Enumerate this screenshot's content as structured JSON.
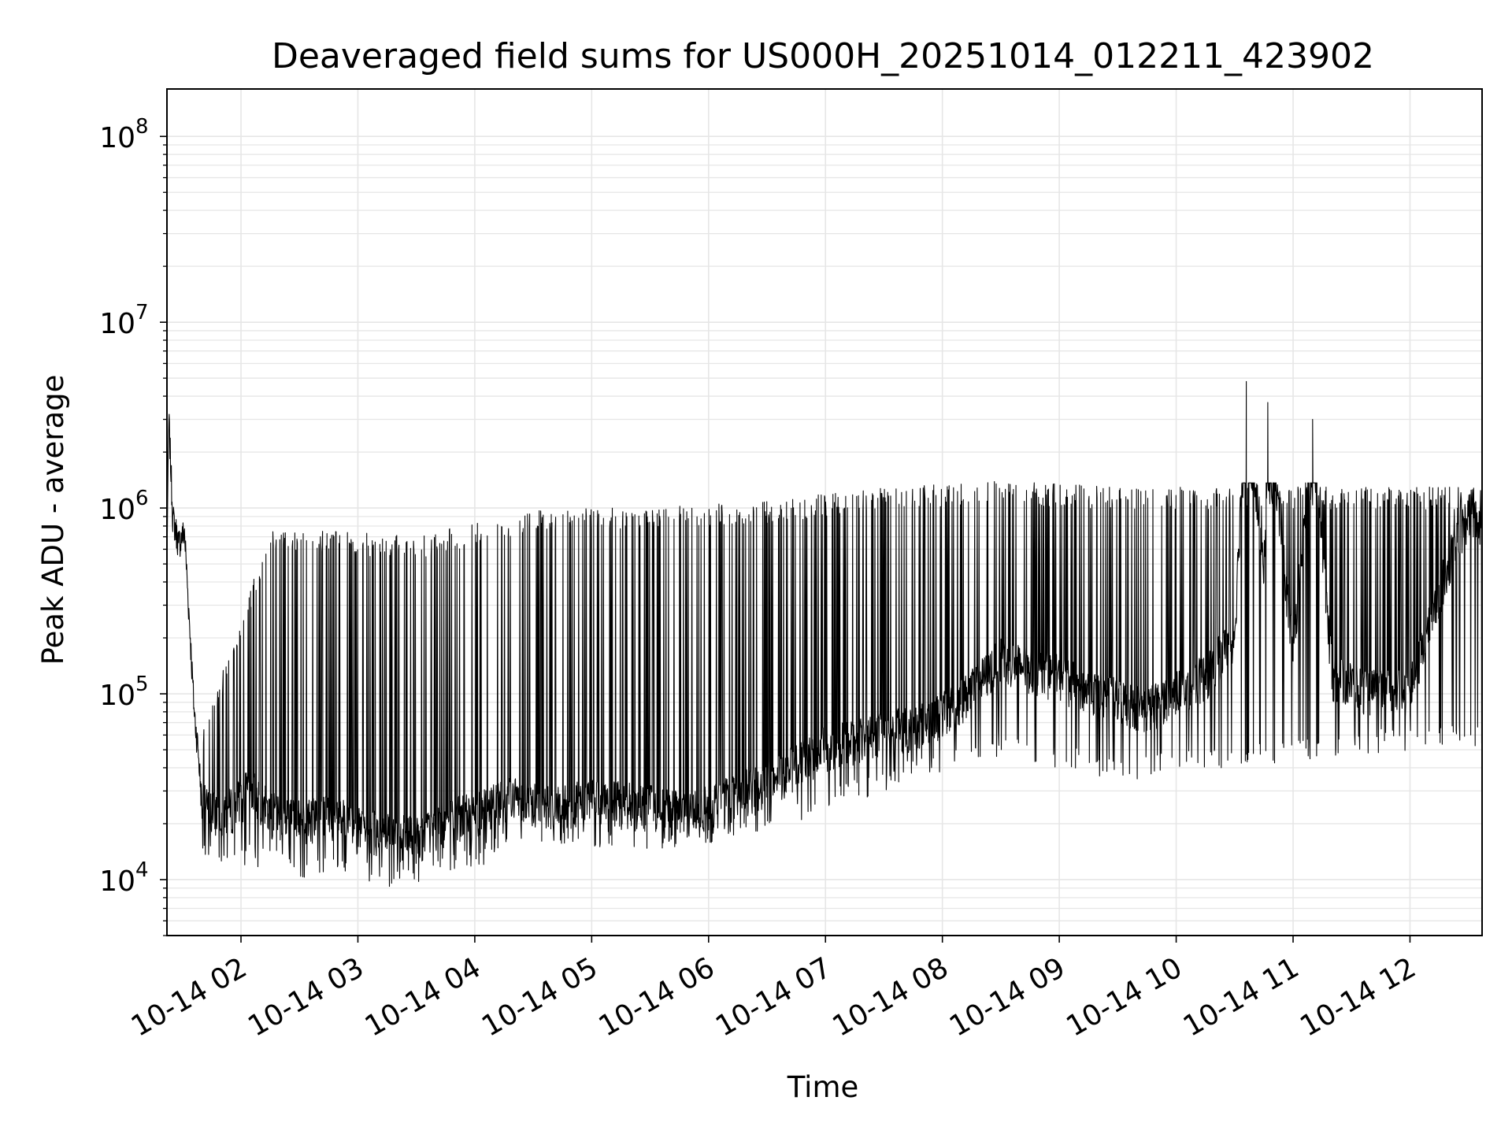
{
  "chart_data": {
    "type": "line",
    "title": "Deaveraged field sums for US000H_20251014_012211_423902",
    "xlabel": "Time",
    "ylabel": "Peak ADU - average",
    "y_scale": "log",
    "ylim": [
      5000,
      180000000
    ],
    "xlim": [
      "2025-10-14 01:22",
      "2025-10-14 12:37"
    ],
    "grid": true,
    "line_color": "#000000",
    "grid_color": "#e6e6e6",
    "x_ticks": [
      {
        "value": "2025-10-14 02:00",
        "label": "10-14 02"
      },
      {
        "value": "2025-10-14 03:00",
        "label": "10-14 03"
      },
      {
        "value": "2025-10-14 04:00",
        "label": "10-14 04"
      },
      {
        "value": "2025-10-14 05:00",
        "label": "10-14 05"
      },
      {
        "value": "2025-10-14 06:00",
        "label": "10-14 06"
      },
      {
        "value": "2025-10-14 07:00",
        "label": "10-14 07"
      },
      {
        "value": "2025-10-14 08:00",
        "label": "10-14 08"
      },
      {
        "value": "2025-10-14 09:00",
        "label": "10-14 09"
      },
      {
        "value": "2025-10-14 10:00",
        "label": "10-14 10"
      },
      {
        "value": "2025-10-14 11:00",
        "label": "10-14 11"
      },
      {
        "value": "2025-10-14 12:00",
        "label": "10-14 12"
      }
    ],
    "y_ticks": [
      {
        "value": 10000,
        "base": "10",
        "exp": "4"
      },
      {
        "value": 100000,
        "base": "10",
        "exp": "5"
      },
      {
        "value": 1000000,
        "base": "10",
        "exp": "6"
      },
      {
        "value": 10000000,
        "base": "10",
        "exp": "7"
      },
      {
        "value": 100000000,
        "base": "10",
        "exp": "8"
      }
    ],
    "series": [
      {
        "points": [
          [
            "2025-10-14 01:22",
            600000
          ],
          [
            "2025-10-14 01:23",
            3000000
          ],
          [
            "2025-10-14 01:25",
            900000
          ],
          [
            "2025-10-14 01:28",
            650000
          ],
          [
            "2025-10-14 01:31",
            750000
          ],
          [
            "2025-10-14 01:34",
            200000
          ],
          [
            "2025-10-14 01:36",
            80000
          ],
          [
            "2025-10-14 01:38",
            50000
          ],
          [
            "2025-10-14 01:40",
            25000
          ],
          [
            "2025-10-14 01:45",
            22000
          ],
          [
            "2025-10-14 01:55",
            23000
          ],
          [
            "2025-10-14 02:05",
            30000
          ],
          [
            "2025-10-14 02:15",
            22000
          ],
          [
            "2025-10-14 02:30",
            20000
          ],
          [
            "2025-10-14 02:45",
            22000
          ],
          [
            "2025-10-14 03:00",
            18000
          ],
          [
            "2025-10-14 03:15",
            17000
          ],
          [
            "2025-10-14 03:30",
            16000
          ],
          [
            "2025-10-14 03:45",
            20000
          ],
          [
            "2025-10-14 04:00",
            22000
          ],
          [
            "2025-10-14 04:15",
            27000
          ],
          [
            "2025-10-14 04:30",
            25000
          ],
          [
            "2025-10-14 04:45",
            24000
          ],
          [
            "2025-10-14 05:00",
            26000
          ],
          [
            "2025-10-14 05:15",
            25000
          ],
          [
            "2025-10-14 05:30",
            24000
          ],
          [
            "2025-10-14 05:45",
            22000
          ],
          [
            "2025-10-14 06:00",
            24000
          ],
          [
            "2025-10-14 06:15",
            28000
          ],
          [
            "2025-10-14 06:30",
            32000
          ],
          [
            "2025-10-14 06:45",
            40000
          ],
          [
            "2025-10-14 07:00",
            50000
          ],
          [
            "2025-10-14 07:15",
            55000
          ],
          [
            "2025-10-14 07:30",
            60000
          ],
          [
            "2025-10-14 07:45",
            65000
          ],
          [
            "2025-10-14 08:00",
            75000
          ],
          [
            "2025-10-14 08:15",
            100000
          ],
          [
            "2025-10-14 08:30",
            150000
          ],
          [
            "2025-10-14 08:45",
            130000
          ],
          [
            "2025-10-14 09:00",
            120000
          ],
          [
            "2025-10-14 09:15",
            100000
          ],
          [
            "2025-10-14 09:30",
            90000
          ],
          [
            "2025-10-14 09:45",
            80000
          ],
          [
            "2025-10-14 10:00",
            100000
          ],
          [
            "2025-10-14 10:15",
            120000
          ],
          [
            "2025-10-14 10:30",
            200000
          ],
          [
            "2025-10-14 10:36",
            4800000
          ],
          [
            "2025-10-14 10:45",
            400000
          ],
          [
            "2025-10-14 10:47",
            3700000
          ],
          [
            "2025-10-14 11:00",
            150000
          ],
          [
            "2025-10-14 11:10",
            3000000
          ],
          [
            "2025-10-14 11:20",
            120000
          ],
          [
            "2025-10-14 11:40",
            100000
          ],
          [
            "2025-10-14 12:00",
            100000
          ],
          [
            "2025-10-14 12:20",
            500000
          ],
          [
            "2025-10-14 12:30",
            900000
          ],
          [
            "2025-10-14 12:37",
            800000
          ]
        ],
        "envelope_upper": [
          [
            "2025-10-14 01:40",
            60000
          ],
          [
            "2025-10-14 02:15",
            800000
          ],
          [
            "2025-10-14 03:30",
            700000
          ],
          [
            "2025-10-14 04:30",
            1000000
          ],
          [
            "2025-10-14 05:30",
            1000000
          ],
          [
            "2025-10-14 06:30",
            1100000
          ],
          [
            "2025-10-14 07:30",
            1300000
          ],
          [
            "2025-10-14 08:30",
            1400000
          ],
          [
            "2025-10-14 09:30",
            1300000
          ],
          [
            "2025-10-14 10:30",
            1300000
          ],
          [
            "2025-10-14 11:30",
            1300000
          ],
          [
            "2025-10-14 12:30",
            1300000
          ]
        ],
        "envelope_lower": [
          [
            "2025-10-14 01:40",
            15000
          ],
          [
            "2025-10-14 02:30",
            12000
          ],
          [
            "2025-10-14 03:30",
            10000
          ],
          [
            "2025-10-14 04:30",
            18000
          ],
          [
            "2025-10-14 05:30",
            16000
          ],
          [
            "2025-10-14 06:30",
            20000
          ],
          [
            "2025-10-14 07:30",
            35000
          ],
          [
            "2025-10-14 08:30",
            55000
          ],
          [
            "2025-10-14 09:30",
            40000
          ],
          [
            "2025-10-14 10:30",
            45000
          ],
          [
            "2025-10-14 11:30",
            55000
          ],
          [
            "2025-10-14 12:20",
            60000
          ]
        ]
      }
    ]
  }
}
